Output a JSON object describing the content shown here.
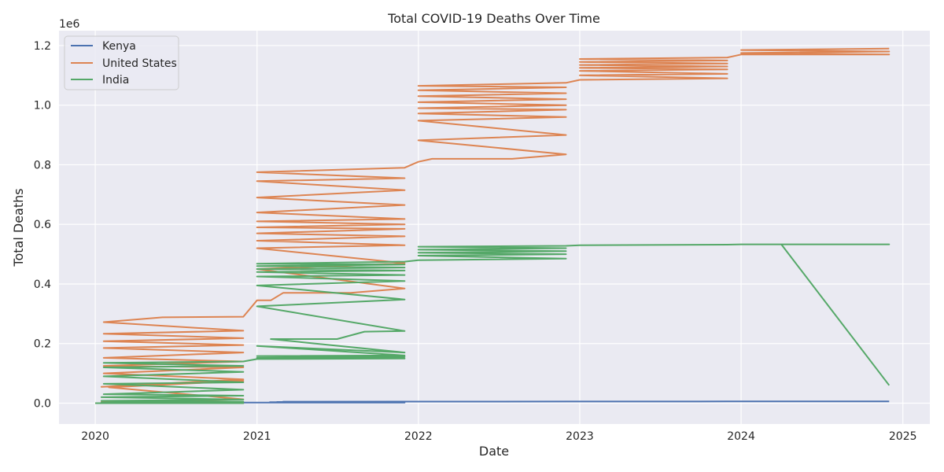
{
  "chart_data": {
    "type": "line",
    "title": "Total COVID-19 Deaths Over Time",
    "xlabel": "Date",
    "ylabel": "Total Deaths",
    "y_scale_label": "1e6",
    "x_ticks": [
      "2020",
      "2021",
      "2022",
      "2023",
      "2024",
      "2025"
    ],
    "y_ticks": [
      "0.0",
      "0.2",
      "0.4",
      "0.6",
      "0.8",
      "1.0",
      "1.2"
    ],
    "xlim": [
      "2019-10-11",
      "2025-03-03"
    ],
    "ylim": [
      -0.07,
      1.25
    ],
    "y_units": "millions of deaths (scale 1e6)",
    "grid": true,
    "legend_placement": "top-left",
    "series": [
      {
        "name": "Kenya",
        "color": "#4c72b0",
        "points": [
          [
            "2020-01-01",
            0.0
          ],
          [
            "2020-12-01",
            0.0
          ],
          [
            "2020-01-15",
            0.0
          ],
          [
            "2020-12-01",
            0.001
          ],
          [
            "2020-01-30",
            0.0
          ],
          [
            "2020-12-01",
            0.001
          ],
          [
            "2020-02-15",
            0.0
          ],
          [
            "2020-12-01",
            0.001
          ],
          [
            "2020-12-01",
            0.0015
          ],
          [
            "2020-12-01",
            0.002
          ],
          [
            "2021-01-01",
            0.0017
          ],
          [
            "2021-12-01",
            0.002
          ],
          [
            "2021-01-15",
            0.002
          ],
          [
            "2021-12-01",
            0.003
          ],
          [
            "2021-01-30",
            0.003
          ],
          [
            "2021-12-01",
            0.004
          ],
          [
            "2021-02-15",
            0.004
          ],
          [
            "2021-12-01",
            0.005
          ],
          [
            "2021-03-01",
            0.005
          ],
          [
            "2021-12-01",
            0.0053
          ],
          [
            "2022-01-01",
            0.0053
          ],
          [
            "2022-12-01",
            0.0056
          ],
          [
            "2023-12-01",
            0.0057
          ],
          [
            "2024-12-01",
            0.0057
          ]
        ]
      },
      {
        "name": "United States",
        "color": "#dd8452",
        "points": [
          [
            "2020-01-01",
            0.0
          ],
          [
            "2020-12-01",
            0.0
          ],
          [
            "2020-01-15",
            0.003
          ],
          [
            "2020-12-01",
            0.013
          ],
          [
            "2020-02-01",
            0.053
          ],
          [
            "2020-12-01",
            0.075
          ],
          [
            "2020-01-15",
            0.055
          ],
          [
            "2020-12-01",
            0.08
          ],
          [
            "2020-01-20",
            0.1
          ],
          [
            "2020-12-01",
            0.12
          ],
          [
            "2020-01-20",
            0.125
          ],
          [
            "2020-12-01",
            0.14
          ],
          [
            "2020-01-20",
            0.152
          ],
          [
            "2020-12-01",
            0.17
          ],
          [
            "2020-01-20",
            0.185
          ],
          [
            "2020-12-01",
            0.195
          ],
          [
            "2020-01-20",
            0.208
          ],
          [
            "2020-12-01",
            0.218
          ],
          [
            "2020-01-20",
            0.233
          ],
          [
            "2020-12-01",
            0.243
          ],
          [
            "2020-01-20",
            0.272
          ],
          [
            "2020-06-01",
            0.288
          ],
          [
            "2020-12-01",
            0.29
          ],
          [
            "2021-01-01",
            0.345
          ],
          [
            "2021-02-01",
            0.345
          ],
          [
            "2021-03-01",
            0.37
          ],
          [
            "2021-08-01",
            0.37
          ],
          [
            "2021-12-01",
            0.385
          ],
          [
            "2021-01-01",
            0.45
          ],
          [
            "2021-12-01",
            0.47
          ],
          [
            "2021-01-01",
            0.52
          ],
          [
            "2021-12-01",
            0.53
          ],
          [
            "2021-01-01",
            0.545
          ],
          [
            "2021-12-01",
            0.56
          ],
          [
            "2021-01-01",
            0.57
          ],
          [
            "2021-12-01",
            0.585
          ],
          [
            "2021-01-01",
            0.59
          ],
          [
            "2021-12-01",
            0.6
          ],
          [
            "2021-01-01",
            0.61
          ],
          [
            "2021-12-01",
            0.618
          ],
          [
            "2021-01-01",
            0.64
          ],
          [
            "2021-12-01",
            0.665
          ],
          [
            "2021-01-01",
            0.69
          ],
          [
            "2021-12-01",
            0.715
          ],
          [
            "2021-01-01",
            0.745
          ],
          [
            "2021-12-01",
            0.755
          ],
          [
            "2021-01-01",
            0.775
          ],
          [
            "2021-12-01",
            0.79
          ],
          [
            "2022-01-01",
            0.81
          ],
          [
            "2022-02-01",
            0.82
          ],
          [
            "2022-08-01",
            0.82
          ],
          [
            "2022-12-01",
            0.835
          ],
          [
            "2022-01-01",
            0.882
          ],
          [
            "2022-12-01",
            0.9
          ],
          [
            "2022-01-01",
            0.948
          ],
          [
            "2022-12-01",
            0.96
          ],
          [
            "2022-01-01",
            0.972
          ],
          [
            "2022-12-01",
            0.985
          ],
          [
            "2022-01-01",
            0.99
          ],
          [
            "2022-12-01",
            1.0
          ],
          [
            "2022-01-01",
            1.01
          ],
          [
            "2022-12-01",
            1.02
          ],
          [
            "2022-01-01",
            1.03
          ],
          [
            "2022-12-01",
            1.04
          ],
          [
            "2022-01-01",
            1.05
          ],
          [
            "2022-12-01",
            1.06
          ],
          [
            "2022-01-01",
            1.065
          ],
          [
            "2022-12-01",
            1.075
          ],
          [
            "2023-01-01",
            1.085
          ],
          [
            "2023-12-01",
            1.09
          ],
          [
            "2023-01-01",
            1.1
          ],
          [
            "2023-12-01",
            1.105
          ],
          [
            "2023-01-01",
            1.115
          ],
          [
            "2023-12-01",
            1.12
          ],
          [
            "2023-01-01",
            1.125
          ],
          [
            "2023-12-01",
            1.13
          ],
          [
            "2023-01-01",
            1.135
          ],
          [
            "2023-12-01",
            1.14
          ],
          [
            "2023-01-01",
            1.145
          ],
          [
            "2023-12-01",
            1.15
          ],
          [
            "2023-01-01",
            1.155
          ],
          [
            "2023-12-01",
            1.16
          ],
          [
            "2024-01-01",
            1.17
          ],
          [
            "2024-12-01",
            1.17
          ],
          [
            "2024-01-01",
            1.175
          ],
          [
            "2024-12-01",
            1.18
          ],
          [
            "2024-01-01",
            1.185
          ],
          [
            "2024-12-01",
            1.19
          ]
        ]
      },
      {
        "name": "India",
        "color": "#55a868",
        "points": [
          [
            "2020-01-01",
            0.0
          ],
          [
            "2020-12-01",
            0.0
          ],
          [
            "2020-01-15",
            0.002
          ],
          [
            "2020-12-01",
            0.005
          ],
          [
            "2020-01-15",
            0.008
          ],
          [
            "2020-12-01",
            0.012
          ],
          [
            "2020-01-15",
            0.02
          ],
          [
            "2020-12-01",
            0.025
          ],
          [
            "2020-01-20",
            0.03
          ],
          [
            "2020-12-01",
            0.045
          ],
          [
            "2020-01-20",
            0.065
          ],
          [
            "2020-12-01",
            0.07
          ],
          [
            "2020-01-20",
            0.09
          ],
          [
            "2020-12-01",
            0.105
          ],
          [
            "2020-01-20",
            0.12
          ],
          [
            "2020-12-01",
            0.125
          ],
          [
            "2020-01-20",
            0.135
          ],
          [
            "2020-12-01",
            0.14
          ],
          [
            "2021-01-01",
            0.148
          ],
          [
            "2021-12-01",
            0.15
          ],
          [
            "2021-01-01",
            0.152
          ],
          [
            "2021-12-01",
            0.155
          ],
          [
            "2021-01-01",
            0.158
          ],
          [
            "2021-12-01",
            0.16
          ],
          [
            "2021-01-01",
            0.192
          ],
          [
            "2021-12-01",
            0.17
          ],
          [
            "2021-02-01",
            0.215
          ],
          [
            "2021-07-01",
            0.215
          ],
          [
            "2021-09-01",
            0.24
          ],
          [
            "2021-12-01",
            0.242
          ],
          [
            "2021-01-01",
            0.325
          ],
          [
            "2021-12-01",
            0.348
          ],
          [
            "2021-01-01",
            0.395
          ],
          [
            "2021-12-01",
            0.41
          ],
          [
            "2021-01-01",
            0.425
          ],
          [
            "2021-12-01",
            0.43
          ],
          [
            "2021-01-01",
            0.44
          ],
          [
            "2021-12-01",
            0.445
          ],
          [
            "2021-01-01",
            0.45
          ],
          [
            "2021-12-01",
            0.455
          ],
          [
            "2021-01-01",
            0.46
          ],
          [
            "2021-12-01",
            0.465
          ],
          [
            "2021-01-01",
            0.468
          ],
          [
            "2021-12-01",
            0.475
          ],
          [
            "2022-01-01",
            0.48
          ],
          [
            "2022-12-01",
            0.485
          ],
          [
            "2022-01-01",
            0.495
          ],
          [
            "2022-12-01",
            0.5
          ],
          [
            "2022-01-01",
            0.505
          ],
          [
            "2022-12-01",
            0.51
          ],
          [
            "2022-01-01",
            0.515
          ],
          [
            "2022-12-01",
            0.52
          ],
          [
            "2022-01-01",
            0.525
          ],
          [
            "2022-12-01",
            0.528
          ],
          [
            "2023-01-01",
            0.53
          ],
          [
            "2023-12-01",
            0.532
          ],
          [
            "2024-01-01",
            0.533
          ],
          [
            "2024-12-01",
            0.533
          ],
          [
            "2024-04-01",
            0.533
          ],
          [
            "2024-12-01",
            0.06
          ]
        ]
      }
    ]
  }
}
